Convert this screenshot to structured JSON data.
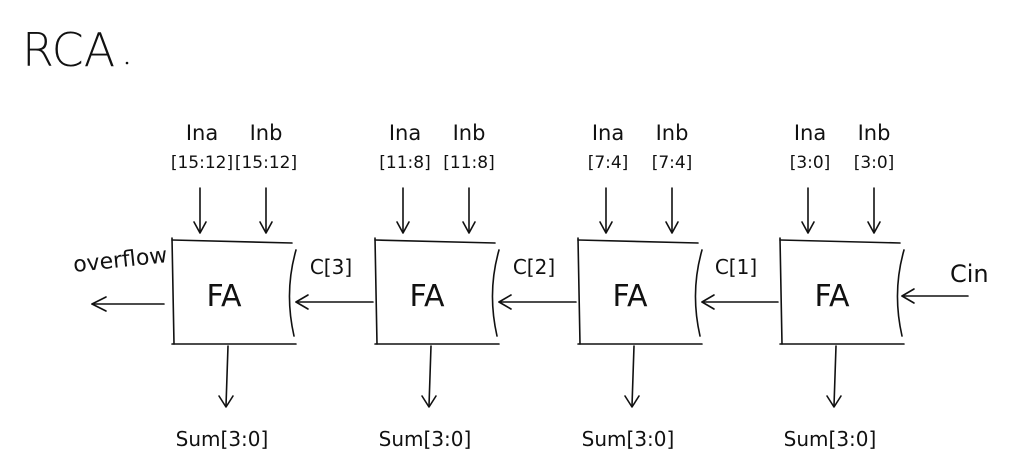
{
  "title": "RCA",
  "stages": [
    {
      "block_label": "FA",
      "input_a": "Ina",
      "input_a_bits": "[15:12]",
      "input_b": "Inb",
      "input_b_bits": "[15:12]",
      "sum_label": "Sum[3:0]"
    },
    {
      "block_label": "FA",
      "input_a": "Ina",
      "input_a_bits": "[11:8]",
      "input_b": "Inb",
      "input_b_bits": "[11:8]",
      "sum_label": "Sum[3:0]"
    },
    {
      "block_label": "FA",
      "input_a": "Ina",
      "input_a_bits": "[7:4]",
      "input_b": "Inb",
      "input_b_bits": "[7:4]",
      "sum_label": "Sum[3:0]"
    },
    {
      "block_label": "FA",
      "input_a": "Ina",
      "input_a_bits": "[3:0]",
      "input_b": "Inb",
      "input_b_bits": "[3:0]",
      "sum_label": "Sum[3:0]"
    }
  ],
  "carries": [
    "C[3]",
    "C[2]",
    "C[1]"
  ],
  "overflow_label": "overflow",
  "carry_in_label": "Cin",
  "colors": {
    "ink": "#111111",
    "background": "#ffffff"
  }
}
